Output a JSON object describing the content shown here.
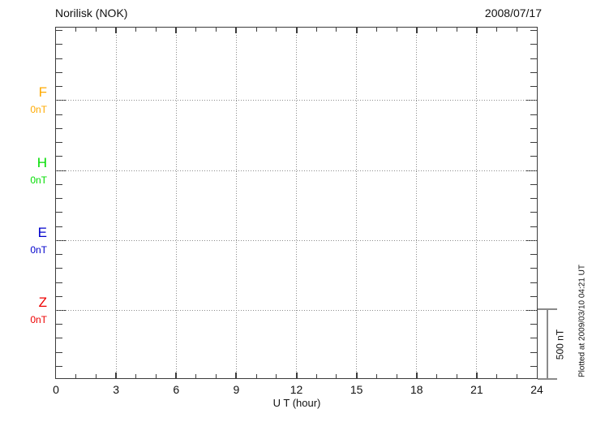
{
  "header": {
    "station": "Norilisk (NOK)",
    "date": "2008/07/17"
  },
  "components": [
    {
      "name": "F",
      "offset_label": "0nT",
      "color": "#FFAA00"
    },
    {
      "name": "H",
      "offset_label": "0nT",
      "color": "#00DD00"
    },
    {
      "name": "E",
      "offset_label": "0nT",
      "color": "#0000CC"
    },
    {
      "name": "Z",
      "offset_label": "0nT",
      "color": "#EE0000"
    }
  ],
  "x_axis": {
    "label": "U T (hour)",
    "tick_labels": [
      "0",
      "3",
      "6",
      "9",
      "12",
      "15",
      "18",
      "21",
      "24"
    ]
  },
  "scale_bar": {
    "label": "500 nT"
  },
  "footer_note": "Plotted at 2009/03/10 04:21 UT",
  "chart_data": {
    "type": "line",
    "title": "Norilisk (NOK)",
    "subtitle": "2008/07/17",
    "xlabel": "U T (hour)",
    "ylabel": "",
    "xlim": [
      0,
      24
    ],
    "x_ticks": [
      0,
      3,
      6,
      9,
      12,
      15,
      18,
      21,
      24
    ],
    "grid": "dotted",
    "legend_position": "left",
    "series": [
      {
        "name": "F",
        "color": "#FFAA00",
        "baseline_value_nT": 0,
        "x": [],
        "values": []
      },
      {
        "name": "H",
        "color": "#00DD00",
        "baseline_value_nT": 0,
        "x": [],
        "values": []
      },
      {
        "name": "E",
        "color": "#0000CC",
        "baseline_value_nT": 0,
        "x": [],
        "values": []
      },
      {
        "name": "Z",
        "color": "#EE0000",
        "baseline_value_nT": 0,
        "x": [],
        "values": []
      }
    ],
    "scale_bar_nT": 500,
    "minor_y_division_nT": 100,
    "note": "Empty magnetogram: no data traces plotted, only dotted 0 nT baselines for F, H, E, Z",
    "annotation": "Plotted at 2009/03/10 04:21 UT"
  }
}
